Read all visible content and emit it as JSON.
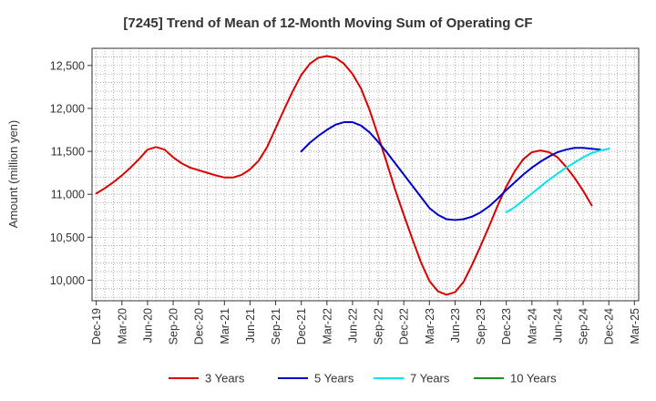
{
  "chart_data": {
    "type": "line",
    "title": "[7245]  Trend of Mean of 12-Month Moving Sum of Operating CF",
    "xlabel": "",
    "ylabel": "Amount (million yen)",
    "ylim": [
      9760,
      12700
    ],
    "y_ticks": [
      10000,
      10500,
      11000,
      11500,
      12000,
      12500
    ],
    "y_tick_labels": [
      "10,000",
      "10,500",
      "11,000",
      "11,500",
      "12,000",
      "12,500"
    ],
    "x_tick_labels": [
      "Dec-19",
      "Mar-20",
      "Jun-20",
      "Sep-20",
      "Dec-20",
      "Mar-21",
      "Jun-21",
      "Sep-21",
      "Dec-21",
      "Mar-22",
      "Jun-22",
      "Sep-22",
      "Dec-22",
      "Mar-23",
      "Jun-23",
      "Sep-23",
      "Dec-23",
      "Mar-24",
      "Jun-24",
      "Sep-24",
      "Dec-24",
      "Mar-25"
    ],
    "x_count": 64,
    "grid": true,
    "legend_position": "bottom",
    "series": [
      {
        "name": "3 Years",
        "color": "#dd0000",
        "start_index": 0,
        "values": [
          11010,
          11070,
          11140,
          11220,
          11310,
          11410,
          11520,
          11550,
          11520,
          11430,
          11360,
          11310,
          11280,
          11250,
          11220,
          11195,
          11195,
          11225,
          11290,
          11390,
          11550,
          11770,
          11990,
          12200,
          12390,
          12520,
          12590,
          12610,
          12590,
          12520,
          12400,
          12230,
          11980,
          11680,
          11370,
          11050,
          10760,
          10480,
          10210,
          9990,
          9870,
          9830,
          9860,
          9980,
          10180,
          10400,
          10630,
          10870,
          11090,
          11270,
          11410,
          11490,
          11510,
          11490,
          11430,
          11320,
          11190,
          11040,
          10870
        ]
      },
      {
        "name": "5 Years",
        "color": "#0000cc",
        "start_index": 24,
        "values": [
          11500,
          11600,
          11680,
          11750,
          11810,
          11840,
          11840,
          11800,
          11720,
          11610,
          11490,
          11360,
          11230,
          11100,
          10970,
          10840,
          10760,
          10710,
          10700,
          10710,
          10740,
          10790,
          10860,
          10950,
          11050,
          11140,
          11230,
          11310,
          11380,
          11440,
          11490,
          11520,
          11540,
          11540,
          11530,
          11520
        ]
      },
      {
        "name": "7 Years",
        "color": "#00e5ee",
        "start_index": 48,
        "values": [
          10790,
          10850,
          10930,
          11010,
          11090,
          11170,
          11240,
          11310,
          11370,
          11430,
          11480,
          11510,
          11530
        ]
      },
      {
        "name": "10 Years",
        "color": "#228b22",
        "start_index": 0,
        "values": []
      }
    ]
  }
}
